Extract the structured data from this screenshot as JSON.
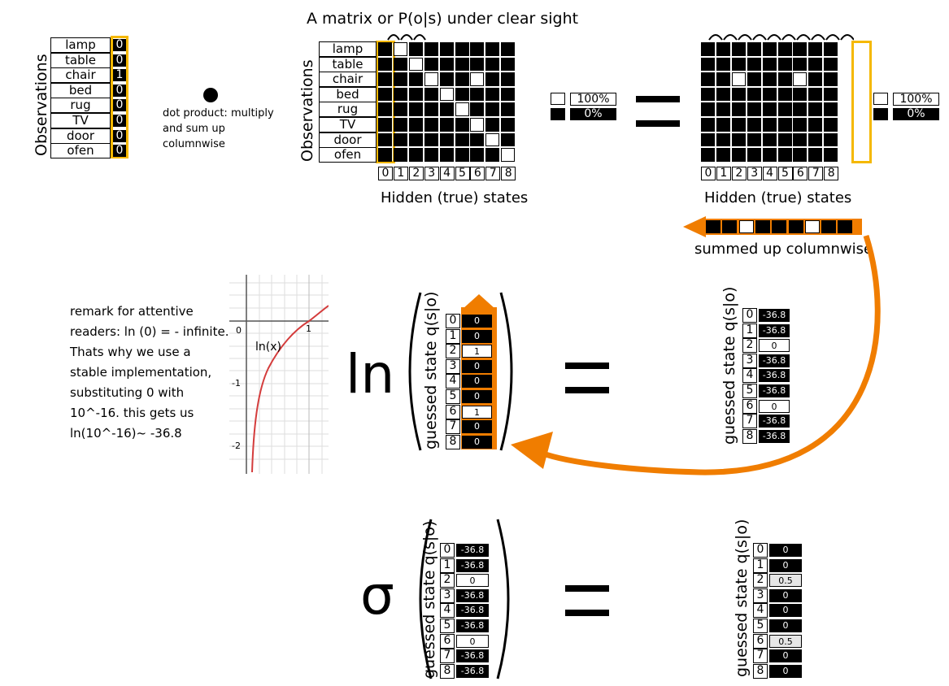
{
  "matrix_title": "A matrix or P(o|s) under clear sight",
  "observations_label": "Observations",
  "observations": [
    "lamp",
    "table",
    "chair",
    "bed",
    "rug",
    "TV",
    "door",
    "ofen"
  ],
  "obs_vector": [
    "0",
    "0",
    "1",
    "0",
    "0",
    "0",
    "0",
    "0"
  ],
  "dot_label": "dot product: multiply and sum up columnwise",
  "states": [
    "0",
    "1",
    "2",
    "3",
    "4",
    "5",
    "6",
    "7",
    "8"
  ],
  "hidden_states_label": "Hidden (true) states",
  "legend": {
    "white": "100%",
    "black": "0%"
  },
  "summed_label": "summed up columnwise",
  "remark": "remark for attentive readers: ln (0) = - infinite. Thats why we use a stable implementation, substituting 0 with 10^-16. this gets us ln(10^-16)~ -36.8",
  "graph": {
    "curve_label": "ln(x)",
    "x_ticks": [
      "0",
      "1"
    ],
    "y_ticks": [
      "-1",
      "-2"
    ]
  },
  "ln_symbol": "ln",
  "sigma_symbol": "σ",
  "guessed_label": "guessed state q(s|o)",
  "vec_counts": [
    "0",
    "0",
    "1",
    "0",
    "0",
    "0",
    "1",
    "0",
    "0"
  ],
  "vec_ln": [
    "-36.8",
    "-36.8",
    "0",
    "-36.8",
    "-36.8",
    "-36.8",
    "0",
    "-36.8",
    "-36.8"
  ],
  "vec_softmax": [
    "0",
    "0",
    "0.5",
    "0",
    "0",
    "0",
    "0.5",
    "0",
    "0"
  ],
  "colors": {
    "accent_orange": "#f07d00",
    "highlight_yellow": "#f5b800",
    "curve_red": "#d43c3c"
  }
}
